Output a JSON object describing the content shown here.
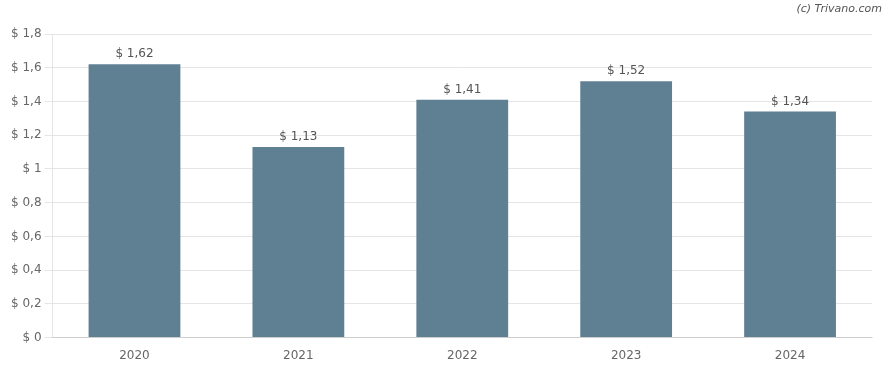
{
  "chart_data": {
    "type": "bar",
    "categories": [
      "2020",
      "2021",
      "2022",
      "2023",
      "2024"
    ],
    "values": [
      1.62,
      1.13,
      1.41,
      1.52,
      1.34
    ],
    "value_labels": [
      "$ 1,62",
      "$ 1,13",
      "$ 1,41",
      "$ 1,52",
      "$ 1,34"
    ],
    "data_labels": true,
    "color": "#5f7f93",
    "ylim": [
      0,
      1.8
    ],
    "yticks": [
      {
        "value": 0,
        "label": "$ 0"
      },
      {
        "value": 0.2,
        "label": "$ 0,2"
      },
      {
        "value": 0.4,
        "label": "$ 0,4"
      },
      {
        "value": 0.6,
        "label": "$ 0,6"
      },
      {
        "value": 0.8,
        "label": "$ 0,8"
      },
      {
        "value": 1.0,
        "label": "$ 1"
      },
      {
        "value": 1.2,
        "label": "$ 1,2"
      },
      {
        "value": 1.4,
        "label": "$ 1,4"
      },
      {
        "value": 1.6,
        "label": "$ 1,6"
      },
      {
        "value": 1.8,
        "label": "$ 1,8"
      }
    ],
    "grid": true,
    "annotations": [
      "(c) Trivano.com"
    ]
  }
}
